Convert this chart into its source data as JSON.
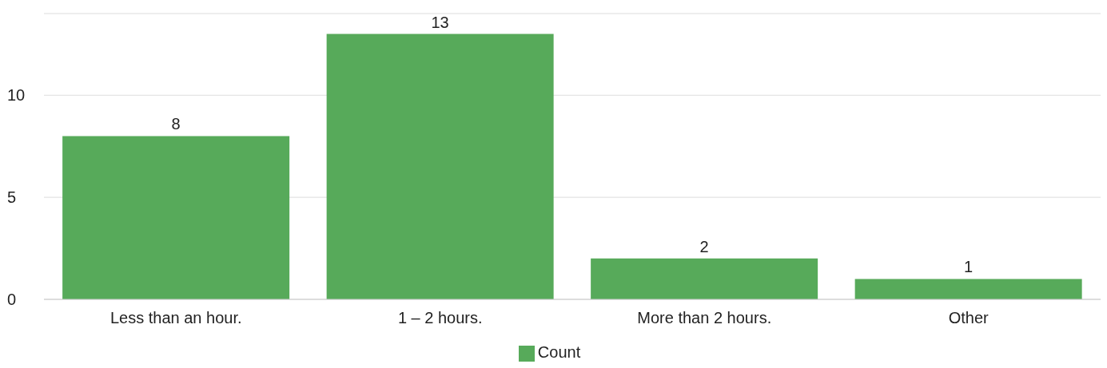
{
  "chart_data": {
    "type": "bar",
    "categories": [
      "Less than an hour.",
      "1 – 2 hours.",
      "More than 2 hours.",
      "Other"
    ],
    "series": [
      {
        "name": "Count",
        "color": "#57aa5a",
        "values": [
          8,
          13,
          2,
          1
        ]
      }
    ],
    "ylim": [
      0,
      14
    ],
    "yticks": [
      0,
      5,
      10
    ],
    "grid": "y",
    "legend": "bottom",
    "data_labels": true
  }
}
